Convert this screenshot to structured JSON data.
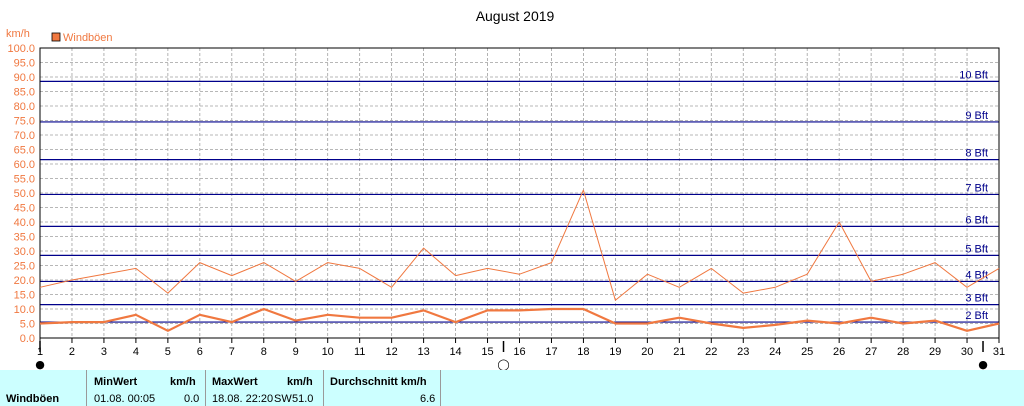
{
  "chart_data": {
    "type": "line",
    "title": "August 2019",
    "ylabel": "km/h",
    "ylim": [
      0,
      100
    ],
    "ytick_step": 5,
    "x": [
      1,
      2,
      3,
      4,
      5,
      6,
      7,
      8,
      9,
      10,
      11,
      12,
      13,
      14,
      15,
      16,
      17,
      18,
      19,
      20,
      21,
      22,
      23,
      24,
      25,
      26,
      27,
      28,
      29,
      30,
      31
    ],
    "series": [
      {
        "name": "Windböen",
        "color": "#f07840",
        "kind": "max",
        "values": [
          17.5,
          20,
          22,
          24,
          15.5,
          26,
          21.5,
          26,
          19.5,
          26,
          24,
          17.5,
          31,
          21.5,
          24,
          22,
          26,
          51,
          13,
          22,
          17.5,
          24,
          15.5,
          17.5,
          22,
          40,
          19.5,
          22,
          26,
          17.5,
          24
        ]
      },
      {
        "name": "Windböen",
        "color": "#f07840",
        "kind": "avg",
        "values": [
          5,
          5.5,
          5.5,
          8,
          2.5,
          8,
          5.5,
          10,
          6,
          8,
          7,
          7,
          9.5,
          5.5,
          9.5,
          9.5,
          10,
          10,
          5,
          5,
          7,
          5,
          3.5,
          4.5,
          6,
          5,
          7,
          5,
          6,
          2.5,
          5
        ]
      }
    ],
    "beaufort": [
      {
        "value": 5.5,
        "label": "2 Bft"
      },
      {
        "value": 11.5,
        "label": "3 Bft"
      },
      {
        "value": 19.5,
        "label": "4 Bft"
      },
      {
        "value": 28.5,
        "label": "5 Bft"
      },
      {
        "value": 38.5,
        "label": "6 Bft"
      },
      {
        "value": 49.5,
        "label": "7 Bft"
      },
      {
        "value": 61.5,
        "label": "8 Bft"
      },
      {
        "value": 74.5,
        "label": "9 Bft"
      },
      {
        "value": 88.5,
        "label": "10 Bft"
      }
    ],
    "legend": "top-left",
    "grid": true,
    "moon_phases": [
      {
        "day": 1,
        "symbol": "●"
      },
      {
        "day": 15.5,
        "symbol": "◯"
      },
      {
        "day": 30.5,
        "symbol": "●"
      }
    ]
  },
  "colors": {
    "axis_text": "#f07840",
    "beaufort": "#00008b",
    "grid": "#a0a0a0",
    "stats_bg": "#ccffff"
  },
  "stats": {
    "row_label": "Windböen",
    "min": {
      "header": "MinWert",
      "unit": "km/h",
      "datetime": "01.08.  00:05",
      "value": "0.0"
    },
    "max": {
      "header": "MaxWert",
      "unit": "km/h",
      "datetime": "18.08.  22:20",
      "dir": "SW",
      "value": "51.0"
    },
    "avg": {
      "header": "Durchschnitt km/h",
      "value": "6.6"
    }
  }
}
